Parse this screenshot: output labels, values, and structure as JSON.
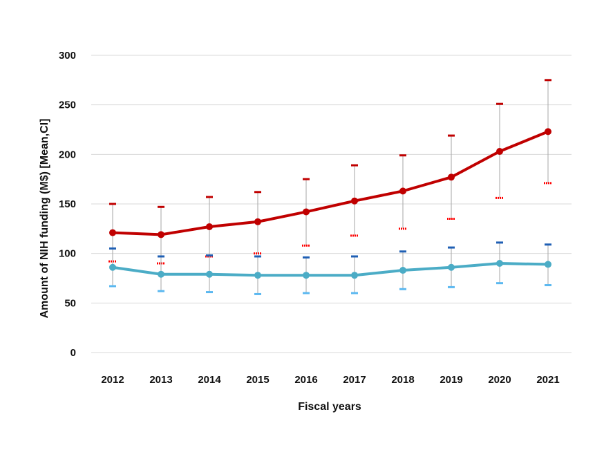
{
  "chart_data": {
    "type": "line",
    "title": "",
    "xlabel": "Fiscal years",
    "ylabel": "Amount of NIH funding (M$) [Mean,CI]",
    "ylim": [
      0,
      300
    ],
    "yticks": [
      0,
      50,
      100,
      150,
      200,
      250,
      300
    ],
    "grid": true,
    "legend": "none",
    "categories": [
      "2012",
      "2013",
      "2014",
      "2015",
      "2016",
      "2017",
      "2018",
      "2019",
      "2020",
      "2021"
    ],
    "series": [
      {
        "color": "#c00000",
        "ci_color": "#c00000",
        "mid_marker_color": "#ff0000",
        "values": [
          121,
          119,
          127,
          132,
          142,
          153,
          163,
          177,
          203,
          223
        ],
        "ci_upper": [
          150,
          147,
          157,
          162,
          175,
          189,
          199,
          219,
          251,
          275
        ],
        "ci_marker": [
          92,
          90,
          97,
          100,
          108,
          118,
          125,
          135,
          156,
          171
        ]
      },
      {
        "color": "#4bacc6",
        "ci_color": "#5bb8f0",
        "upper_marker_color": "#1f5fb4",
        "values": [
          86,
          79,
          79,
          78,
          78,
          78,
          83,
          86,
          90,
          89
        ],
        "ci_upper": [
          105,
          97,
          98,
          97,
          96,
          97,
          102,
          106,
          111,
          109
        ],
        "ci_lower": [
          67,
          62,
          61,
          59,
          60,
          60,
          64,
          66,
          70,
          68
        ]
      }
    ]
  }
}
